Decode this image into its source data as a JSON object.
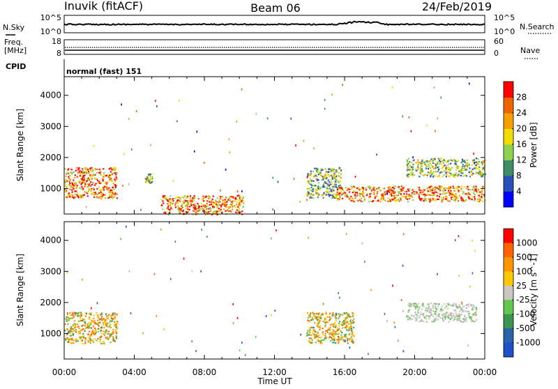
{
  "header": {
    "radar": "Inuvik (fitACF)",
    "beam": "Beam 06",
    "date": "24/Feb/2019"
  },
  "noise_panel": {
    "left_label": "N.Sky",
    "left_ticks": [
      "10^5",
      "10^0"
    ],
    "right_label": "N.Search",
    "right_ticks": [
      "10^5",
      "10^0"
    ]
  },
  "freq_panel": {
    "left_label_1": "Freq.",
    "left_label_2": "[MHz]",
    "left_ticks": [
      "18",
      "8"
    ],
    "right_label": "Nave",
    "right_ticks": [
      "60",
      "0"
    ]
  },
  "cpid_panel": {
    "label": "CPID",
    "mode": "normal (fast) 151"
  },
  "colors": {
    "power": [
      "#0000ff",
      "#2850b8",
      "#3c8c64",
      "#8cd250",
      "#f0dc00",
      "#f5a000",
      "#f06400",
      "#ff0000"
    ],
    "velocity": [
      "#ff0000",
      "#ff6400",
      "#ff9600",
      "#ffc800",
      "#c8c8c0",
      "#64c850",
      "#3c9650",
      "#2864aa",
      "#1e50c8"
    ],
    "ground": "#b4b4a8"
  },
  "chart_data": [
    {
      "type": "heatmap",
      "name": "power",
      "xlabel": "",
      "ylabel": "Slant Range [km]",
      "ylim": [
        180,
        4600
      ],
      "yticks": [
        "4000",
        "3000",
        "2000",
        "1000"
      ],
      "xticks": [
        "00:00",
        "04:00",
        "08:00",
        "12:00",
        "16:00",
        "20:00",
        "00:00"
      ],
      "colorbar_label": "Power [dB]",
      "colorbar_ticks": [
        "28",
        "24",
        "20",
        "16",
        "12",
        "8",
        "4"
      ],
      "features": [
        {
          "hours": [
            0,
            3.0
          ],
          "range_km": [
            700,
            1700
          ],
          "level": "strong"
        },
        {
          "hours": [
            4.6,
            5.0
          ],
          "range_km": [
            1200,
            1500
          ],
          "level": "medium"
        },
        {
          "hours": [
            5.5,
            10.2
          ],
          "range_km": [
            180,
            800
          ],
          "level": "strong"
        },
        {
          "hours": [
            13.8,
            15.8
          ],
          "range_km": [
            700,
            1700
          ],
          "level": "medium"
        },
        {
          "hours": [
            15.5,
            24
          ],
          "range_km": [
            600,
            1100
          ],
          "level": "strong"
        },
        {
          "hours": [
            19.5,
            24
          ],
          "range_km": [
            1400,
            2000
          ],
          "level": "medium"
        }
      ]
    },
    {
      "type": "heatmap",
      "name": "velocity",
      "xlabel": "Time UT",
      "ylabel": "Slant Range [km]",
      "ylim": [
        180,
        4600
      ],
      "yticks": [
        "4000",
        "3000",
        "2000",
        "1000"
      ],
      "xticks": [
        "00:00",
        "04:00",
        "08:00",
        "12:00",
        "16:00",
        "20:00",
        "00:00"
      ],
      "colorbar_label": "Velocity [m s^-1]",
      "colorbar_ticks": [
        "1000",
        "500",
        "100",
        "25",
        "-25",
        "-100",
        "-500",
        "-1000"
      ],
      "features": [
        {
          "hours": [
            0,
            3.0
          ],
          "range_km": [
            700,
            1700
          ],
          "level": "negative"
        },
        {
          "hours": [
            13.8,
            16.5
          ],
          "range_km": [
            700,
            1700
          ],
          "level": "negative"
        },
        {
          "hours": [
            19.5,
            23.5
          ],
          "range_km": [
            1400,
            2000
          ],
          "level": "near-zero"
        }
      ]
    }
  ]
}
